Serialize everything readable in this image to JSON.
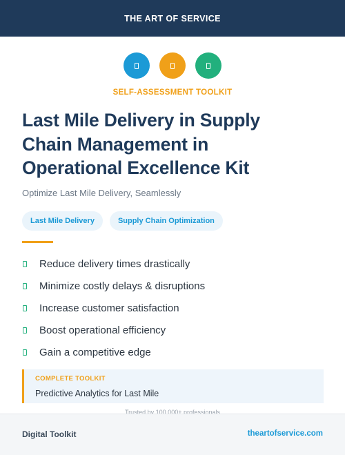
{
  "header": {
    "brand": "THE ART OF SERVICE"
  },
  "icons": [
    {
      "name": "document-icon",
      "color": "#1c9ad6"
    },
    {
      "name": "document-icon",
      "color": "#f0a019"
    },
    {
      "name": "document-icon",
      "color": "#22b07d"
    }
  ],
  "kicker": "SELF-ASSESSMENT TOOLKIT",
  "title_lines": [
    "Last Mile Delivery in Supply",
    "Chain Management in",
    "Operational Excellence Kit"
  ],
  "subtitle": "Optimize Last Mile Delivery, Seamlessly",
  "tags": [
    "Last Mile Delivery",
    "Supply Chain Optimization"
  ],
  "benefits": [
    "Reduce delivery times drastically",
    "Minimize costly delays & disruptions",
    "Increase customer satisfaction",
    "Boost operational efficiency",
    "Gain a competitive edge"
  ],
  "callout": {
    "label": "COMPLETE TOOLKIT",
    "text": "Predictive Analytics for Last Mile"
  },
  "trusted": "Trusted by 100,000+ professionals",
  "footer": {
    "left": "Digital Toolkit",
    "right": "theartofservice.com"
  },
  "colors": {
    "navy": "#1f3a5a",
    "accent_orange": "#f0a019",
    "accent_blue": "#1c9ad6",
    "accent_green": "#22b07d"
  }
}
